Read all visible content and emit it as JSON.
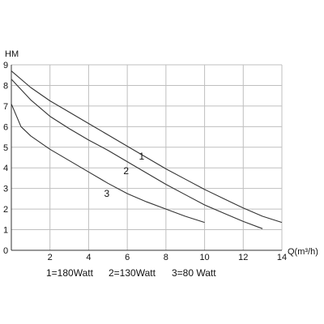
{
  "chart_data": {
    "type": "line",
    "title": "",
    "ylabel": "HM",
    "xlabel": "Q(m³/h)",
    "xlim": [
      0,
      14
    ],
    "ylim": [
      0,
      9
    ],
    "x_ticks": [
      "2",
      "4",
      "6",
      "8",
      "10",
      "12",
      "14"
    ],
    "y_ticks": [
      "0",
      "1",
      "2",
      "3",
      "4",
      "5",
      "6",
      "7",
      "8",
      "9"
    ],
    "grid": true,
    "series": [
      {
        "name": "1",
        "x": [
          0,
          1,
          2,
          3,
          4,
          5,
          6,
          7,
          8,
          9,
          10,
          11,
          12,
          13,
          14
        ],
        "values": [
          8.7,
          7.9,
          7.25,
          6.7,
          6.15,
          5.6,
          5.05,
          4.5,
          3.95,
          3.45,
          2.95,
          2.5,
          2.05,
          1.65,
          1.35
        ]
      },
      {
        "name": "2",
        "x": [
          0,
          1,
          2,
          3,
          4,
          5,
          6,
          7,
          8,
          9,
          10,
          11,
          12,
          13
        ],
        "values": [
          8.3,
          7.3,
          6.5,
          5.9,
          5.35,
          4.85,
          4.3,
          3.75,
          3.2,
          2.7,
          2.2,
          1.8,
          1.4,
          1.05
        ]
      },
      {
        "name": "3",
        "x": [
          0,
          0.5,
          1,
          2,
          3,
          4,
          5,
          6,
          7,
          8,
          9,
          10
        ],
        "values": [
          7.1,
          6.0,
          5.55,
          4.9,
          4.35,
          3.8,
          3.25,
          2.75,
          2.35,
          2.0,
          1.65,
          1.35
        ]
      }
    ],
    "curve_labels": [
      {
        "text": "1",
        "x": 6.6,
        "y": 4.4
      },
      {
        "text": "2",
        "x": 5.8,
        "y": 3.7
      },
      {
        "text": "3",
        "x": 4.8,
        "y": 2.6
      }
    ],
    "legend": [
      {
        "text": "1=180Watt"
      },
      {
        "text": "2=130Watt"
      },
      {
        "text": "3=80 Watt"
      }
    ]
  }
}
